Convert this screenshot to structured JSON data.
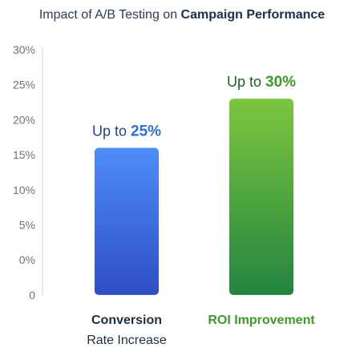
{
  "chart_data": {
    "type": "bar",
    "title_prefix": "Impact of A/B Testing on ",
    "title_emphasis": "Campaign Performance",
    "y_ticks": [
      "0",
      "0%",
      "5%",
      "10%",
      "15%",
      "20%",
      "25%",
      "30%"
    ],
    "ylim": [
      0,
      30
    ],
    "grid": "none",
    "categories": [
      {
        "line1": "Conversion",
        "line2": "Rate Increase",
        "value": 18,
        "label_prefix": "Up to ",
        "label_number": "25%",
        "color_top": "#4f8df7",
        "color_bottom": "#2f4fc4",
        "label_color": "#24408f",
        "number_color": "#2e6fe0",
        "category_color": "#1f2d3d"
      },
      {
        "line1": "ROI Improvement",
        "line2": "",
        "value": 24,
        "label_prefix": "Up to ",
        "label_number": "30%",
        "color_top": "#7cc63f",
        "color_bottom": "#23843f",
        "label_color": "#1f5f23",
        "number_color": "#3f9a2c",
        "category_color": "#3f9a2c"
      }
    ]
  },
  "colors": {
    "title": "#2a3a5a",
    "title_emphasis": "#1f2d50",
    "axis": "#d5dbe3",
    "tick": "#6b7280"
  }
}
